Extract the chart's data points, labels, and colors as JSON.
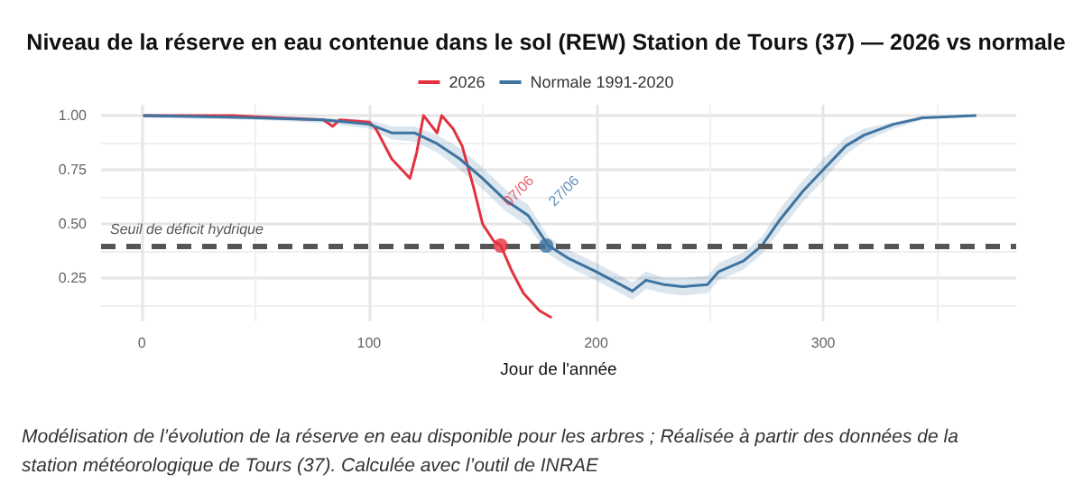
{
  "chart_data": {
    "type": "line",
    "title": "Niveau de la réserve en eau contenue dans le sol (REW) Station de Tours (37) — 2026 vs normale",
    "xlabel": "Jour de l'année",
    "legend": "top",
    "grid": true,
    "marker": "none",
    "line_style": "solid",
    "xlim": [
      -18,
      385
    ],
    "xticks": [
      0,
      100,
      200,
      300
    ],
    "ylim": [
      0.05,
      1.05
    ],
    "yticks": [
      {
        "value": 0.25,
        "label": "0.25"
      },
      {
        "value": 0.5,
        "label": "0.50"
      },
      {
        "value": 0.75,
        "label": "0.75"
      },
      {
        "value": 1,
        "label": "1.00"
      }
    ],
    "series": [
      {
        "name": "2026",
        "color": "#e3323f",
        "x": [
          1,
          40,
          60,
          80,
          84,
          87,
          100,
          103,
          110,
          118,
          121,
          124,
          127,
          130,
          132,
          137,
          141,
          146,
          150,
          155,
          158,
          163,
          168,
          175,
          180
        ],
        "values": [
          1,
          1,
          0.99,
          0.98,
          0.95,
          0.98,
          0.97,
          0.94,
          0.8,
          0.71,
          0.83,
          1,
          0.96,
          0.92,
          1,
          0.94,
          0.86,
          0.67,
          0.5,
          0.42,
          0.4,
          0.28,
          0.18,
          0.1,
          0.07
        ]
      },
      {
        "name": "Normale 1991-2020",
        "color": "#3f73a0",
        "x": [
          1,
          50,
          80,
          100,
          110,
          120,
          130,
          140,
          150,
          160,
          170,
          179,
          188,
          200,
          209,
          216,
          222,
          230,
          238,
          249,
          254,
          265,
          273,
          281,
          291,
          300,
          310,
          318,
          331,
          344,
          367
        ],
        "values": [
          1,
          0.99,
          0.98,
          0.96,
          0.92,
          0.92,
          0.87,
          0.8,
          0.71,
          0.61,
          0.54,
          0.4,
          0.34,
          0.28,
          0.23,
          0.19,
          0.24,
          0.22,
          0.21,
          0.22,
          0.28,
          0.33,
          0.4,
          0.52,
          0.65,
          0.75,
          0.86,
          0.91,
          0.96,
          0.99,
          1
        ],
        "lower": [
          0.99,
          0.98,
          0.965,
          0.94,
          0.89,
          0.88,
          0.83,
          0.75,
          0.66,
          0.56,
          0.49,
          0.36,
          0.3,
          0.24,
          0.19,
          0.15,
          0.2,
          0.18,
          0.17,
          0.18,
          0.24,
          0.29,
          0.36,
          0.47,
          0.6,
          0.7,
          0.82,
          0.88,
          0.94,
          0.98,
          null
        ],
        "upper": [
          1,
          1,
          0.99,
          0.98,
          0.95,
          0.95,
          0.91,
          0.85,
          0.76,
          0.66,
          0.59,
          0.44,
          0.38,
          0.32,
          0.27,
          0.23,
          0.28,
          0.25,
          0.25,
          0.26,
          0.32,
          0.37,
          0.44,
          0.57,
          0.7,
          0.8,
          0.9,
          0.94,
          0.97,
          1,
          null
        ]
      }
    ],
    "ref_lines": [
      {
        "axis": "y",
        "value": 0.4,
        "label": "Seuil de déficit hydrique",
        "color": "#555555",
        "line_style": "dashed"
      }
    ],
    "annotations": [
      {
        "text": "07/06",
        "x": 158,
        "y": 0.4
      },
      {
        "text": "27/06",
        "x": 178,
        "y": 0.4
      },
      "Modélisation de l’évolution de la réserve en eau disponible pour les arbres ; Réalisée à partir des données de la station météorologique de Tours (37). Calculée avec l’outil de INRAE"
    ]
  }
}
